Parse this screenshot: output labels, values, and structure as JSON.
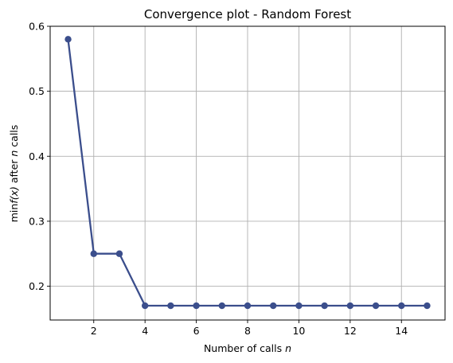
{
  "chart_data": {
    "type": "line",
    "title": "Convergence plot - Random Forest",
    "xlabel": "Number of calls",
    "xlabel_var": "n",
    "ylabel_prefix": "min",
    "ylabel_fx": "f(x)",
    "ylabel_mid": " after ",
    "ylabel_var": "n",
    "ylabel_suffix": " calls",
    "xlim": [
      0.3,
      15.7
    ],
    "ylim": [
      0.148,
      0.6
    ],
    "xticks": [
      2,
      4,
      6,
      8,
      10,
      12,
      14
    ],
    "yticks": [
      0.2,
      0.3,
      0.4,
      0.5,
      0.6
    ],
    "grid": true,
    "series": [
      {
        "color": "#3b4e8c",
        "x": [
          1,
          2,
          3,
          4,
          5,
          6,
          7,
          8,
          9,
          10,
          11,
          12,
          13,
          14,
          15
        ],
        "y": [
          0.58,
          0.25,
          0.25,
          0.17,
          0.17,
          0.17,
          0.17,
          0.17,
          0.17,
          0.17,
          0.17,
          0.17,
          0.17,
          0.17,
          0.17
        ]
      }
    ]
  }
}
